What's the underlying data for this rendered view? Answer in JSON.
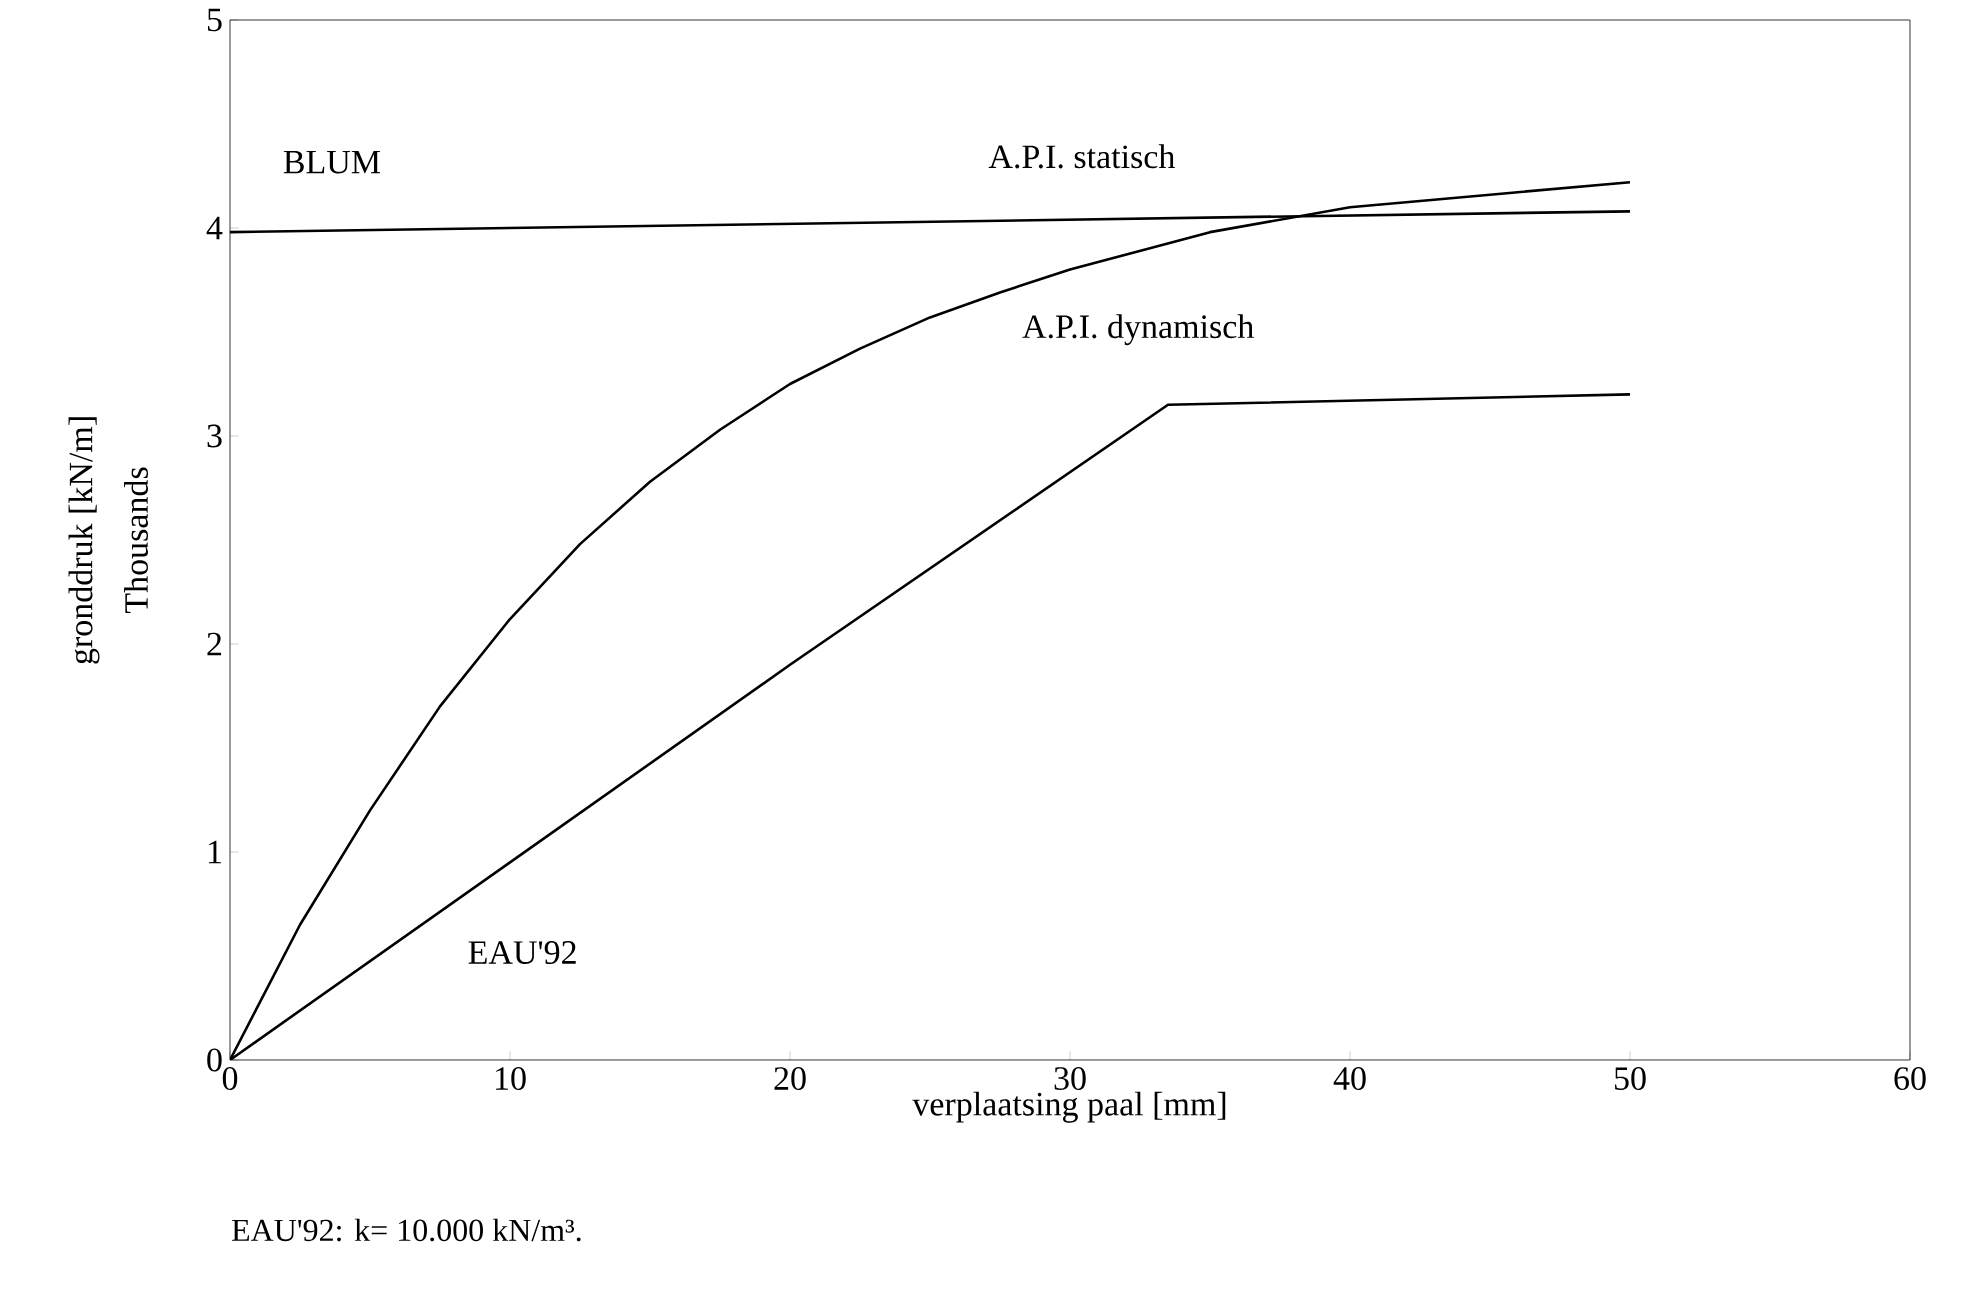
{
  "chart_data": {
    "type": "line",
    "xlabel": "verplaatsing paal [mm]",
    "ylabel": "gronddruk [kN/m]",
    "xlim": [
      0,
      60
    ],
    "xticks": [
      0,
      10,
      20,
      30,
      40,
      50,
      60
    ],
    "ylim": [
      0,
      5
    ],
    "yticks": [
      0,
      1,
      2,
      3,
      4,
      5
    ],
    "grid": false,
    "marker": "none",
    "line_style": "solid",
    "series": [
      {
        "color": "#000000",
        "x": [
          0,
          50
        ],
        "values": [
          3.98,
          4.08
        ]
      },
      {
        "color": "#000000",
        "x": [
          0,
          2.5,
          5,
          7.5,
          10,
          12.5,
          15,
          17.5,
          20,
          22.5,
          25,
          27.5,
          30,
          35,
          40,
          45,
          50
        ],
        "values": [
          0,
          0.65,
          1.2,
          1.7,
          2.12,
          2.48,
          2.78,
          3.03,
          3.25,
          3.42,
          3.57,
          3.69,
          3.8,
          3.98,
          4.1,
          4.16,
          4.22
        ]
      },
      {
        "color": "#000000",
        "x": [
          0,
          10,
          20,
          33.5,
          50
        ],
        "values": [
          0,
          0.95,
          1.9,
          3.15,
          3.2
        ]
      }
    ],
    "annotations": [
      "Thousands",
      "BLUM",
      "A.P.I. statisch",
      "A.P.I. dynamisch",
      "EAU'92",
      "EAU'92: k= 10.000 kN/m³."
    ]
  }
}
